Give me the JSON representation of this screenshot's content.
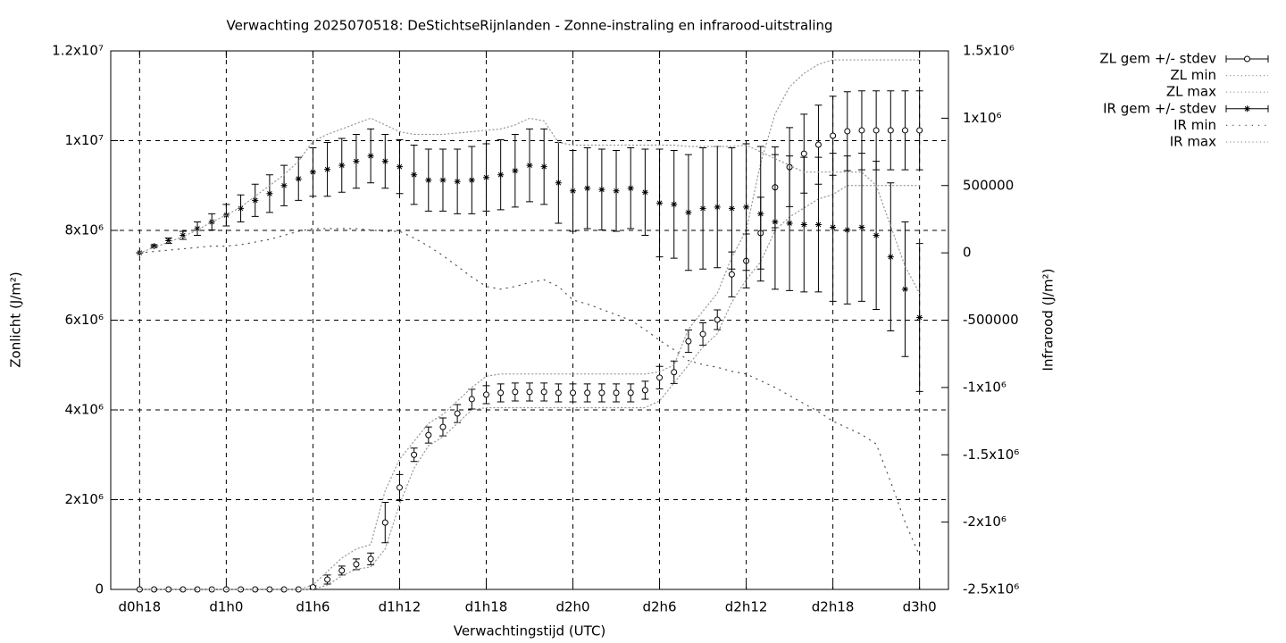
{
  "chart_data": {
    "type": "errorbar-line",
    "title": "Verwachting 2025070518: DeStichtseRijnlanden - Zonne-instraling en infrarood-uitstraling",
    "x_label": "Verwachtingstijd (UTC)",
    "y_label": "Zonlicht (J/m²)",
    "y2_label": "Infrarood (J/m²)",
    "x": [
      18,
      19,
      20,
      21,
      22,
      23,
      24,
      25,
      26,
      27,
      28,
      29,
      30,
      31,
      32,
      33,
      34,
      35,
      36,
      37,
      38,
      39,
      40,
      41,
      42,
      43,
      44,
      45,
      46,
      47,
      48,
      49,
      50,
      51,
      52,
      53,
      54,
      55,
      56,
      57,
      58,
      59,
      60,
      61,
      62,
      63,
      64,
      65,
      66,
      67,
      68,
      69,
      70,
      71,
      72
    ],
    "xlim": [
      16,
      74
    ],
    "xticks": [
      {
        "value": 18,
        "label": "d0h18"
      },
      {
        "value": 24,
        "label": "d1h0"
      },
      {
        "value": 30,
        "label": "d1h6"
      },
      {
        "value": 36,
        "label": "d1h12"
      },
      {
        "value": 42,
        "label": "d1h18"
      },
      {
        "value": 48,
        "label": "d2h0"
      },
      {
        "value": 54,
        "label": "d2h6"
      },
      {
        "value": 60,
        "label": "d2h12"
      },
      {
        "value": 66,
        "label": "d2h18"
      },
      {
        "value": 72,
        "label": "d3h0"
      }
    ],
    "ylim": [
      0,
      12000000
    ],
    "yticks": [
      0,
      {
        "value": 2000000,
        "label": "2x10⁶"
      },
      {
        "value": 4000000,
        "label": "4x10⁶"
      },
      {
        "value": 6000000,
        "label": "6x10⁶"
      },
      {
        "value": 8000000,
        "label": "8x10⁶"
      },
      {
        "value": 10000000,
        "label": "1x10⁷"
      },
      {
        "value": 12000000,
        "label": "1.2x10⁷"
      }
    ],
    "y2lim": [
      -2500000,
      1500000
    ],
    "y2ticks": [
      {
        "value": 1500000,
        "label": "1.5x10⁶"
      },
      {
        "value": 1000000,
        "label": "1x10⁶"
      },
      500000,
      0,
      -500000,
      {
        "value": -1000000,
        "label": "-1x10⁶"
      },
      {
        "value": -1500000,
        "label": "-1.5x10⁶"
      },
      {
        "value": -2000000,
        "label": "-2x10⁶"
      },
      {
        "value": -2500000,
        "label": "-2.5x10⁶"
      }
    ],
    "grid": true,
    "legend": "top-right",
    "series": [
      {
        "name": "ZL gem +/- stdev",
        "color": "#000000",
        "style": "errorbars",
        "marker": "circle",
        "values": [
          0,
          0,
          0,
          0,
          0,
          0,
          0,
          0,
          0,
          0,
          0,
          0,
          50000,
          220000,
          420000,
          560000,
          680000,
          1490000,
          2270000,
          3000000,
          3440000,
          3620000,
          3920000,
          4240000,
          4340000,
          4380000,
          4400000,
          4400000,
          4400000,
          4380000,
          4380000,
          4380000,
          4380000,
          4380000,
          4380000,
          4440000,
          4720000,
          4840000,
          5530000,
          5690000,
          6010000,
          7020000,
          7320000,
          7940000,
          8960000,
          9410000,
          9710000,
          9910000,
          10110000,
          10210000,
          10230000,
          10230000,
          10230000,
          10230000,
          10230000
        ],
        "errors": [
          0,
          0,
          0,
          0,
          0,
          0,
          0,
          0,
          0,
          0,
          0,
          0,
          30000,
          100000,
          100000,
          120000,
          130000,
          450000,
          290000,
          150000,
          180000,
          200000,
          200000,
          220000,
          200000,
          200000,
          200000,
          200000,
          200000,
          200000,
          200000,
          200000,
          200000,
          200000,
          200000,
          200000,
          250000,
          250000,
          250000,
          250000,
          220000,
          500000,
          600000,
          800000,
          900000,
          880000,
          880000,
          880000,
          880000,
          880000,
          880000,
          880000,
          880000,
          880000,
          880000
        ]
      },
      {
        "name": "ZL min",
        "color": "#999999",
        "style": "dotted",
        "values": [
          0,
          0,
          0,
          0,
          0,
          0,
          0,
          0,
          0,
          0,
          0,
          0,
          0,
          100000,
          300000,
          450000,
          500000,
          900000,
          1900000,
          2700000,
          3200000,
          3400000,
          3700000,
          4000000,
          4050000,
          4050000,
          4050000,
          4050000,
          4050000,
          4050000,
          4050000,
          4050000,
          4050000,
          4050000,
          4050000,
          4050000,
          4200000,
          4600000,
          5000000,
          5400000,
          5700000,
          6400000,
          6900000,
          7300000,
          8000000,
          8300000,
          8500000,
          8700000,
          8800000,
          9000000,
          9000000,
          9000000,
          9000000,
          9000000,
          9000000
        ]
      },
      {
        "name": "ZL max",
        "color": "#999999",
        "style": "dotted",
        "values": [
          0,
          0,
          0,
          0,
          0,
          0,
          0,
          0,
          0,
          0,
          0,
          0,
          100000,
          400000,
          700000,
          900000,
          1000000,
          2200000,
          2900000,
          3300000,
          3700000,
          3900000,
          4200000,
          4500000,
          4750000,
          4800000,
          4800000,
          4800000,
          4800000,
          4800000,
          4800000,
          4800000,
          4800000,
          4800000,
          4800000,
          4800000,
          4850000,
          5000000,
          5800000,
          6200000,
          6600000,
          7400000,
          8000000,
          9500000,
          10600000,
          11200000,
          11500000,
          11700000,
          11800000,
          11800000,
          11800000,
          11800000,
          11800000,
          11800000,
          11800000
        ]
      },
      {
        "name": "IR gem +/- stdev",
        "color": "#000000",
        "style": "errorbars",
        "marker": "star",
        "axis": "y2",
        "values": [
          0,
          50000,
          90000,
          130000,
          180000,
          230000,
          280000,
          330000,
          390000,
          440000,
          500000,
          550000,
          600000,
          620000,
          650000,
          680000,
          720000,
          680000,
          640000,
          580000,
          540000,
          540000,
          530000,
          540000,
          560000,
          580000,
          610000,
          650000,
          640000,
          520000,
          460000,
          480000,
          470000,
          460000,
          480000,
          450000,
          370000,
          360000,
          300000,
          330000,
          340000,
          330000,
          340000,
          290000,
          230000,
          220000,
          210000,
          210000,
          190000,
          170000,
          190000,
          130000,
          -30000,
          -270000,
          -480000
        ],
        "errors": [
          0,
          10000,
          20000,
          30000,
          50000,
          60000,
          80000,
          100000,
          120000,
          140000,
          150000,
          160000,
          180000,
          200000,
          200000,
          200000,
          200000,
          200000,
          200000,
          220000,
          230000,
          230000,
          240000,
          250000,
          250000,
          260000,
          270000,
          270000,
          280000,
          300000,
          300000,
          300000,
          300000,
          300000,
          300000,
          320000,
          400000,
          400000,
          430000,
          450000,
          450000,
          450000,
          470000,
          500000,
          500000,
          500000,
          500000,
          500000,
          550000,
          550000,
          550000,
          550000,
          550000,
          500000,
          550000
        ]
      },
      {
        "name": "IR min",
        "color": "#555555",
        "style": "sparse-dotted",
        "axis": "y2",
        "values": [
          0,
          10000,
          20000,
          30000,
          40000,
          50000,
          50000,
          60000,
          80000,
          100000,
          130000,
          160000,
          180000,
          180000,
          180000,
          180000,
          170000,
          160000,
          160000,
          110000,
          50000,
          -20000,
          -100000,
          -180000,
          -250000,
          -270000,
          -250000,
          -220000,
          -200000,
          -250000,
          -350000,
          -380000,
          -420000,
          -460000,
          -500000,
          -570000,
          -650000,
          -720000,
          -800000,
          -830000,
          -850000,
          -880000,
          -900000,
          -950000,
          -1000000,
          -1060000,
          -1120000,
          -1180000,
          -1250000,
          -1300000,
          -1350000,
          -1420000,
          -1700000,
          -2000000,
          -2250000
        ]
      },
      {
        "name": "IR max",
        "color": "#999999",
        "style": "dotted",
        "axis": "y2",
        "values": [
          0,
          40000,
          80000,
          120000,
          170000,
          230000,
          280000,
          340000,
          420000,
          500000,
          580000,
          680000,
          830000,
          880000,
          920000,
          960000,
          1000000,
          950000,
          900000,
          880000,
          880000,
          880000,
          890000,
          900000,
          910000,
          920000,
          950000,
          1000000,
          980000,
          820000,
          800000,
          800000,
          800000,
          800000,
          800000,
          800000,
          800000,
          800000,
          790000,
          790000,
          790000,
          790000,
          800000,
          750000,
          700000,
          650000,
          600000,
          600000,
          600000,
          600000,
          600000,
          500000,
          200000,
          -100000,
          -300000
        ]
      }
    ]
  }
}
